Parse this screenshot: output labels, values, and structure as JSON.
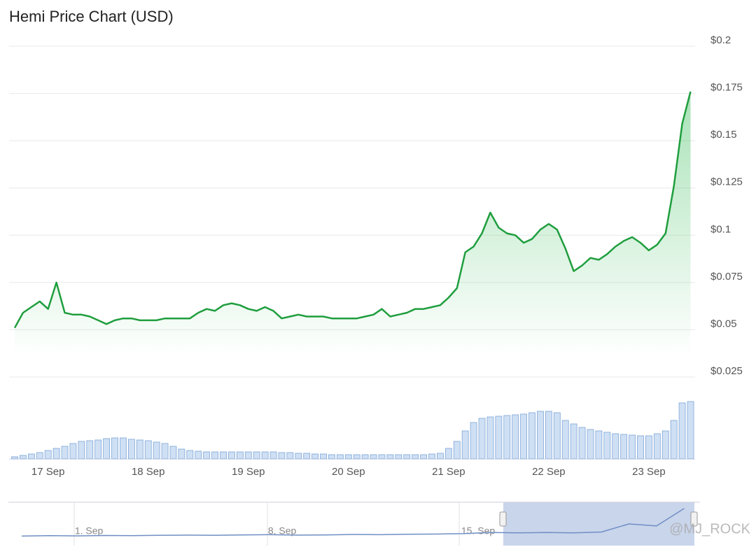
{
  "chart_data": [
    {
      "type": "line",
      "title": "Hemi Price Chart (USD)",
      "color": "#1f9e3e",
      "categories": [
        null,
        null,
        null,
        null,
        "17 Sep",
        null,
        null,
        null,
        null,
        null,
        null,
        null,
        null,
        null,
        null,
        null,
        "18 Sep",
        null,
        null,
        null,
        null,
        null,
        null,
        null,
        null,
        null,
        null,
        null,
        "19 Sep",
        null,
        null,
        null,
        null,
        null,
        null,
        null,
        null,
        null,
        null,
        null,
        "20 Sep",
        null,
        null,
        null,
        null,
        null,
        null,
        null,
        null,
        null,
        null,
        null,
        "21 Sep",
        null,
        null,
        null,
        null,
        null,
        null,
        null,
        null,
        null,
        null,
        null,
        "22 Sep",
        null,
        null,
        null,
        null,
        null,
        null,
        null,
        null,
        null,
        null,
        null,
        "23 Sep",
        null,
        null,
        null,
        null,
        null
      ],
      "values": [
        0.051,
        0.059,
        0.062,
        0.065,
        0.061,
        0.075,
        0.059,
        0.058,
        0.058,
        0.057,
        0.055,
        0.053,
        0.055,
        0.056,
        0.056,
        0.055,
        0.055,
        0.055,
        0.056,
        0.056,
        0.056,
        0.056,
        0.059,
        0.061,
        0.06,
        0.063,
        0.064,
        0.063,
        0.061,
        0.06,
        0.062,
        0.06,
        0.056,
        0.057,
        0.058,
        0.057,
        0.057,
        0.057,
        0.056,
        0.056,
        0.056,
        0.056,
        0.057,
        0.058,
        0.061,
        0.057,
        0.058,
        0.059,
        0.061,
        0.061,
        0.062,
        0.063,
        0.067,
        0.072,
        0.091,
        0.094,
        0.101,
        0.112,
        0.104,
        0.101,
        0.1,
        0.096,
        0.098,
        0.103,
        0.106,
        0.103,
        0.093,
        0.081,
        0.084,
        0.088,
        0.087,
        0.09,
        0.094,
        0.097,
        0.099,
        0.096,
        0.092,
        0.095,
        0.101,
        0.126,
        0.159,
        0.176
      ],
      "ylim": [
        0.025,
        0.2
      ],
      "yticks": [
        {
          "value": 0.025,
          "label": "$0.025"
        },
        {
          "value": 0.05,
          "label": "$0.05"
        },
        {
          "value": 0.075,
          "label": "$0.075"
        },
        {
          "value": 0.1,
          "label": "$0.1"
        },
        {
          "value": 0.125,
          "label": "$0.125"
        },
        {
          "value": 0.15,
          "label": "$0.15"
        },
        {
          "value": 0.175,
          "label": "$0.175"
        },
        {
          "value": 0.2,
          "label": "$0.2"
        }
      ],
      "grid": true
    },
    {
      "type": "bar",
      "color": "#cfe0f4",
      "values": [
        3,
        5,
        7,
        9,
        12,
        15,
        18,
        22,
        25,
        26,
        27,
        29,
        30,
        30,
        28,
        27,
        26,
        24,
        22,
        18,
        14,
        12,
        11,
        10,
        10,
        10,
        10,
        10,
        10,
        10,
        10,
        10,
        9,
        9,
        8,
        8,
        7,
        7,
        6,
        6,
        6,
        6,
        6,
        6,
        6,
        6,
        6,
        6,
        6,
        6,
        7,
        8,
        15,
        25,
        40,
        52,
        58,
        60,
        61,
        62,
        63,
        64,
        66,
        68,
        68,
        66,
        55,
        50,
        45,
        42,
        40,
        38,
        36,
        35,
        34,
        33,
        33,
        36,
        40,
        55,
        80,
        82
      ],
      "ylim": [
        0,
        100
      ]
    },
    {
      "type": "line",
      "color": "#6f8fc4",
      "categories": [
        null,
        null,
        "1. Sep",
        null,
        null,
        null,
        null,
        null,
        null,
        "8. Sep",
        null,
        null,
        null,
        null,
        null,
        null,
        "15. Sep",
        null,
        null,
        null,
        null,
        null,
        null,
        null,
        null
      ],
      "values": [
        0.04,
        0.042,
        0.041,
        0.043,
        0.042,
        0.044,
        0.045,
        0.044,
        0.046,
        0.047,
        0.045,
        0.046,
        0.048,
        0.047,
        0.049,
        0.05,
        0.052,
        0.058,
        0.056,
        0.058,
        0.056,
        0.06,
        0.1,
        0.09,
        0.176
      ],
      "ylim": [
        0,
        0.2
      ]
    }
  ],
  "watermark": "@MJ_ROCK"
}
